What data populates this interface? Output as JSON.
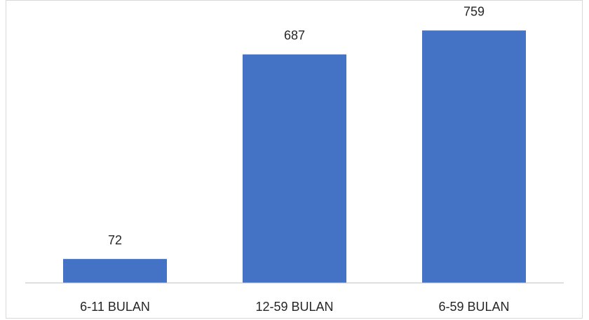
{
  "chart_data": {
    "type": "bar",
    "categories": [
      "6-11 BULAN",
      "12-59 BULAN",
      "6-59 BULAN"
    ],
    "values": [
      72,
      687,
      759
    ],
    "data_labels": [
      "72",
      "687",
      "759"
    ],
    "title": "",
    "xlabel": "",
    "ylabel": "",
    "ylim": [
      0,
      800
    ],
    "grid": false,
    "legend": "none",
    "bar_color": "#4472c4",
    "axis_color": "#bfbfbf",
    "text_color": "#262626"
  }
}
